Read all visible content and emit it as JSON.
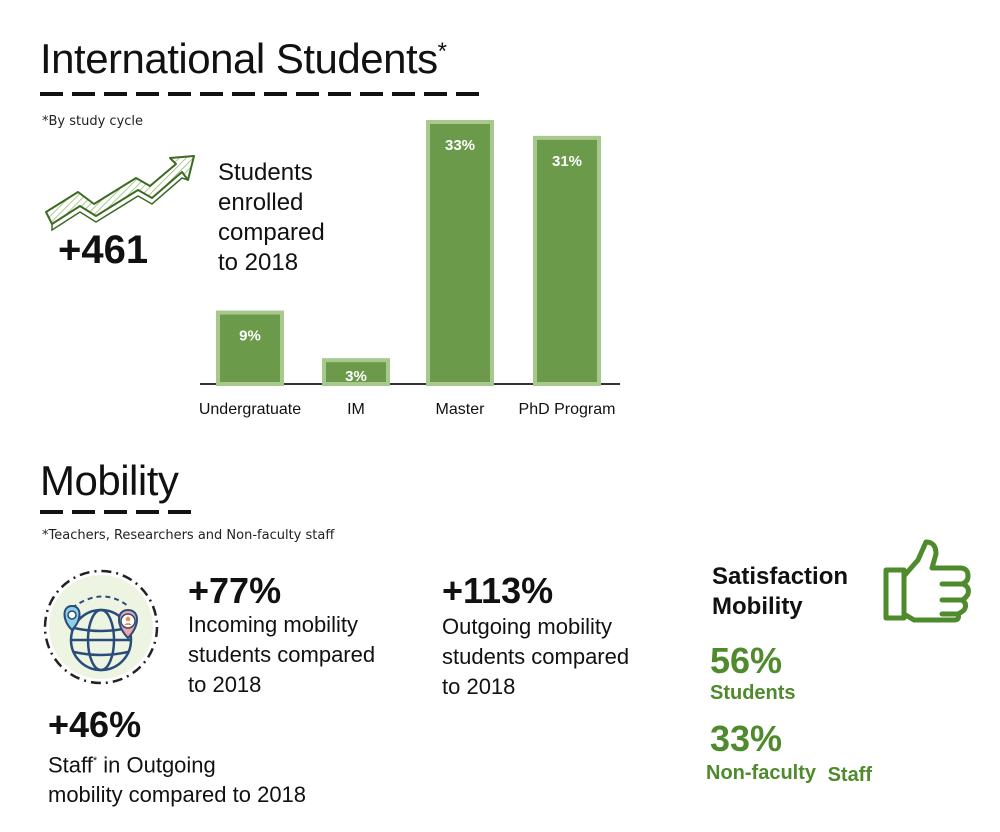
{
  "international": {
    "title": "International Students",
    "title_marker": "*",
    "note": "*By study cycle",
    "increase": "+461",
    "increase_caption": [
      "Students",
      "enrolled",
      "compared",
      "to 2018"
    ]
  },
  "chart_data": {
    "type": "bar",
    "categories": [
      "Undergratuate",
      "IM",
      "Master",
      "PhD Program"
    ],
    "values": [
      9,
      3,
      33,
      31
    ],
    "value_labels": [
      "9%",
      "3%",
      "33%",
      "31%"
    ],
    "ylim": [
      0,
      33
    ],
    "bar_color": "#6a9a4a",
    "bar_border_color": "#a8c98e",
    "grid": false,
    "title": "",
    "xlabel": "",
    "ylabel": ""
  },
  "mobility": {
    "title": "Mobility",
    "note": "*Teachers, Researchers  and Non-faculty staff",
    "incoming": {
      "value": "+77%",
      "caption": [
        "Incoming mobility",
        "students compared",
        "to 2018"
      ]
    },
    "outgoing": {
      "value": "+113%",
      "caption": [
        "Outgoing mobility",
        "students compared",
        "to 2018"
      ]
    },
    "staff": {
      "value": "+46%",
      "caption_prefix": "Staff",
      "caption_marker": "*",
      "caption_suffix": " in Outgoing",
      "caption_line2": "mobility compared to 2018"
    }
  },
  "satisfaction": {
    "title": [
      "Satisfaction",
      "Mobility"
    ],
    "students_value": "56%",
    "students_label": "Students",
    "staff_value": "33%",
    "staff_label_1": "Non-faculty",
    "staff_label_2": "Staff",
    "accent": "#4f8a2c"
  },
  "icons": [
    "trend-up-arrow-icon",
    "globe-location-pins-icon",
    "thumbs-up-icon"
  ]
}
